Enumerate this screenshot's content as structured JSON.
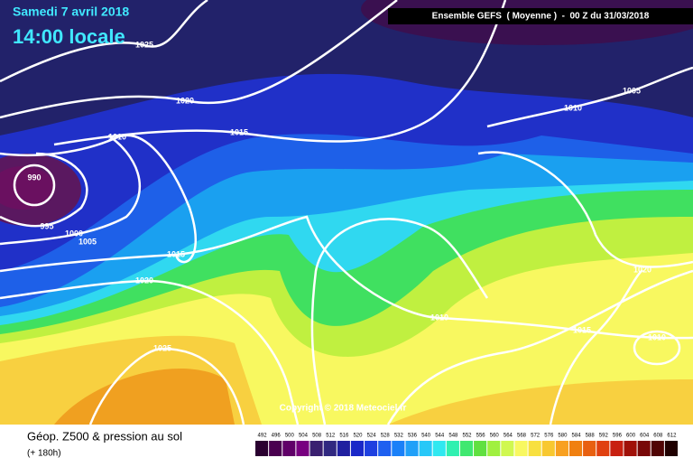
{
  "header": {
    "date": "Samedi 7 avril 2018",
    "time": "14:00 locale",
    "run": "Ensemble GEFS  ( Moyenne )  -  00 Z du 31/03/2018"
  },
  "isobar_labels": [
    "1025",
    "1020",
    "1015",
    "1010",
    "990",
    "995",
    "1000",
    "1005",
    "1015",
    "1020",
    "1025",
    "1010",
    "1015",
    "1010",
    "1020",
    "1010",
    "1005"
  ],
  "copyright": "Copyright © 2018 Meteociel.fr",
  "legend": {
    "title": "Géop. Z500 & pression au sol",
    "lead": "(+ 180h)",
    "levels": [
      492,
      496,
      500,
      504,
      508,
      512,
      516,
      520,
      524,
      528,
      532,
      536,
      540,
      544,
      548,
      552,
      556,
      560,
      564,
      568,
      572,
      576,
      580,
      584,
      588,
      592,
      596,
      600,
      604,
      608,
      612
    ],
    "colors": [
      "#2a0030",
      "#4a0050",
      "#600068",
      "#780080",
      "#3a2070",
      "#302880",
      "#2020a0",
      "#1a28c8",
      "#1e40e0",
      "#1e60f0",
      "#1a80f8",
      "#20a0f8",
      "#28c8f8",
      "#30e8f0",
      "#30f0b0",
      "#40e870",
      "#60e040",
      "#a0f040",
      "#d0f850",
      "#f8f860",
      "#f8e040",
      "#f8c830",
      "#f8a020",
      "#f08010",
      "#e86010",
      "#e04010",
      "#c82010",
      "#a01008",
      "#780808",
      "#500404",
      "#200000"
    ]
  }
}
